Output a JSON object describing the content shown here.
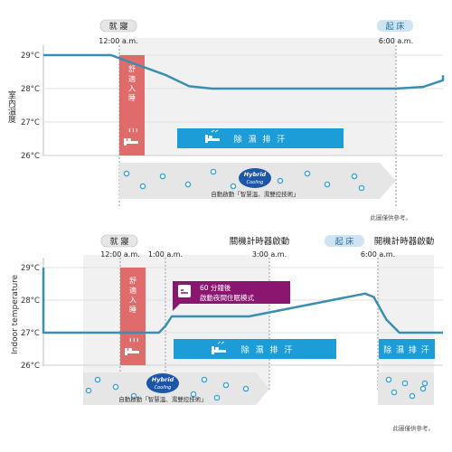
{
  "colors": {
    "line": "#3a8fb0",
    "hybrid_bg": "#e4e4e4",
    "grid_bg": "#f1f1f1",
    "dehumid": "#1d9dd8",
    "bed": "#e06b6b",
    "purple": "#8b1670",
    "pill": "#cfe4f2",
    "dot": "#3aa4d8",
    "badge": "#1b56a8"
  },
  "chart_data": [
    {
      "type": "line",
      "markers": [
        {
          "label": "就 寢",
          "time": "12:00 a.m."
        },
        {
          "label": "起 床",
          "time": "6:00 a.m."
        }
      ],
      "ylabel": "室內溫度",
      "yticks": [
        "29°C",
        "28°C",
        "27°C",
        "26°C"
      ],
      "ylim": [
        26,
        29
      ],
      "x": [
        -3.4,
        -0.2,
        1.0,
        1.5,
        2.0,
        3.0,
        4.5,
        6.0,
        6.6,
        7.2,
        7.8
      ],
      "y": [
        29.0,
        29.0,
        28.4,
        28.07,
        28.0,
        28.0,
        28.0,
        28.0,
        28.05,
        28.25,
        28.4
      ],
      "bands": {
        "sleep_label": "舒 適 入 睡",
        "dehumid_label": "除 濕 排 汗",
        "hybrid_caption": "自動啟動「智慧溫、濕雙控技術」",
        "note": "此圖僅供參考。"
      }
    },
    {
      "type": "line",
      "markers": [
        {
          "label": "就 寢",
          "time": "12:00 a.m."
        },
        {
          "label": "",
          "time": "1:00 a.m."
        },
        {
          "label": "關機計時器啟動",
          "time": "3:00 a.m."
        },
        {
          "label": "起 床",
          "time": "6:00 a.m."
        },
        {
          "label": "開機計時器啟動",
          "time": ""
        }
      ],
      "ylabel": "Indoor temperature",
      "yticks": [
        "29°C",
        "28°C",
        "27°C",
        "26°C"
      ],
      "ylim": [
        26,
        29
      ],
      "x": [
        -3.4,
        -3.0,
        -2.5,
        -2.1,
        0.9,
        1.05,
        1.2,
        3.0,
        5.7,
        5.9,
        6.2,
        6.5,
        7.8
      ],
      "y": [
        29.0,
        29.0,
        28.0,
        27.0,
        27.0,
        27.2,
        27.5,
        27.5,
        28.2,
        28.1,
        27.4,
        27.0,
        27.0
      ],
      "bands": {
        "sleep_label": "舒 適 入 睡",
        "dehumid_label": "除 濕 排 汗",
        "dehumid_label_2": "除 濕 排 汗",
        "callout": [
          "60 分鐘後",
          "啟動夜間住眠模式"
        ],
        "hybrid_caption": "自動啟動「智慧溫、濕雙控技術」",
        "note": "此圖僅供參考。"
      }
    }
  ],
  "badge": {
    "line1": "Hybrid",
    "line2": "Cooling"
  }
}
